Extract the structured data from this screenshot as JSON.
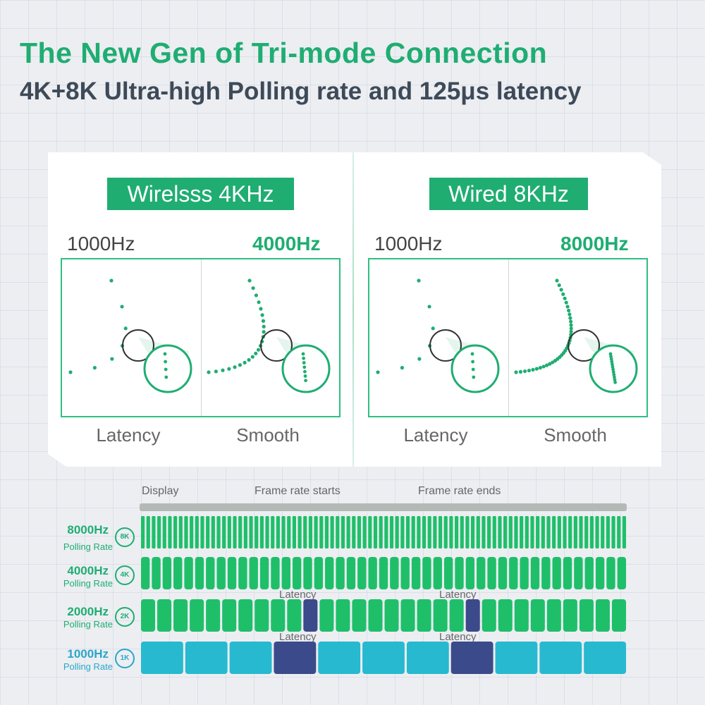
{
  "header": {
    "title": "The New Gen of Tri-mode Connection",
    "subtitle": "4K+8K Ultra-high Polling rate and 125μs latency"
  },
  "panels": [
    {
      "mode": "Wirelsss 4KHz",
      "low_rate": "1000Hz",
      "high_rate": "4000Hz",
      "left_caption": "Latency",
      "right_caption": "Smooth"
    },
    {
      "mode": "Wired 8KHz",
      "low_rate": "1000Hz",
      "high_rate": "8000Hz",
      "left_caption": "Latency",
      "right_caption": "Smooth"
    }
  ],
  "timeline": {
    "display": "Display",
    "frame_start": "Frame rate starts",
    "frame_end": "Frame rate ends",
    "latency": "Latency",
    "rows": [
      {
        "name": "8000Hz",
        "sub": "Polling Rate",
        "badge": "8K"
      },
      {
        "name": "4000Hz",
        "sub": "Polling Rate",
        "badge": "4K"
      },
      {
        "name": "2000Hz",
        "sub": "Polling Rate",
        "badge": "2K"
      },
      {
        "name": "1000Hz",
        "sub": "Polling Rate",
        "badge": "1K"
      }
    ]
  },
  "colors": {
    "brand_green": "#1fad72",
    "bar_green": "#1fbf6a",
    "bar_blue": "#27b9cf",
    "latency_dark": "#3b4a8a"
  }
}
